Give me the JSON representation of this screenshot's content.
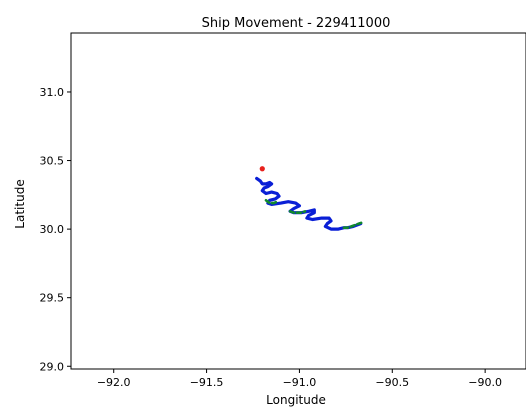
{
  "chart_data": {
    "type": "line",
    "title": "Ship Movement - 229411000",
    "xlabel": "Longitude",
    "ylabel": "Latitude",
    "xlim": [
      -92.23,
      -89.78
    ],
    "ylim": [
      28.98,
      31.43
    ],
    "xticks": [
      -92.0,
      -91.5,
      -91.0,
      -90.5,
      -90.0
    ],
    "xtick_labels": [
      "−92.0",
      "−91.5",
      "−91.0",
      "−90.5",
      "−90.0"
    ],
    "yticks": [
      29.0,
      29.5,
      30.0,
      30.5,
      31.0
    ],
    "ytick_labels": [
      "29.0",
      "29.5",
      "30.0",
      "30.5",
      "31.0"
    ],
    "grid": false,
    "series": [
      {
        "color": "#0a1fd6",
        "width": 3.2,
        "x": [
          -91.23,
          -91.21,
          -91.2,
          -91.18,
          -91.16,
          -91.15,
          -91.17,
          -91.19,
          -91.2,
          -91.18,
          -91.15,
          -91.12,
          -91.11,
          -91.13,
          -91.16,
          -91.17,
          -91.15,
          -91.1,
          -91.06,
          -91.02,
          -91.0,
          -91.03,
          -91.05,
          -91.03,
          -90.99,
          -90.95,
          -90.92,
          -90.92,
          -90.95,
          -90.96,
          -90.93,
          -90.88,
          -90.84,
          -90.83,
          -90.85,
          -90.86,
          -90.83,
          -90.79,
          -90.76,
          -90.74,
          -90.71,
          -90.69,
          -90.67
        ],
        "y": [
          30.37,
          30.35,
          30.33,
          30.33,
          30.34,
          30.33,
          30.31,
          30.3,
          30.28,
          30.26,
          30.27,
          30.26,
          30.24,
          30.22,
          30.21,
          30.19,
          30.18,
          30.19,
          30.2,
          30.19,
          30.17,
          30.15,
          30.13,
          30.12,
          30.12,
          30.13,
          30.14,
          30.12,
          30.1,
          30.08,
          30.07,
          30.08,
          30.08,
          30.06,
          30.04,
          30.02,
          30.0,
          30.0,
          30.01,
          30.01,
          30.02,
          30.03,
          30.04
        ]
      },
      {
        "color": "#118a2c",
        "width": 2.6,
        "x": [
          -91.05,
          -91.03,
          -91.01,
          -90.99,
          -90.97
        ],
        "y": [
          30.13,
          30.12,
          30.12,
          30.12,
          30.13
        ]
      },
      {
        "color": "#118a2c",
        "width": 2.6,
        "x": [
          -90.76,
          -90.74,
          -90.72,
          -90.7,
          -90.68,
          -90.66
        ],
        "y": [
          30.01,
          30.01,
          30.02,
          30.03,
          30.04,
          30.05
        ]
      },
      {
        "color": "#118a2c",
        "width": 2.6,
        "x": [
          -91.18,
          -91.16,
          -91.14,
          -91.12
        ],
        "y": [
          30.21,
          30.19,
          30.19,
          30.2
        ]
      }
    ],
    "points": [
      {
        "x": -91.2,
        "y": 30.44,
        "color": "#e8211d"
      }
    ]
  }
}
